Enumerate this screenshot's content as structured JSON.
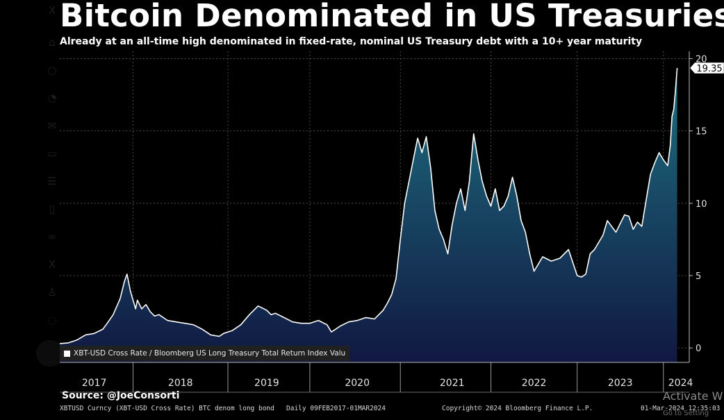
{
  "title": "Bitcoin Denominated in US Treasuries",
  "subtitle": "Already at an all-time high denominated in fixed-rate, nominal US Treasury debt with a 10+ year maturity",
  "legend": {
    "label": "XBT-USD Cross Rate / Bloomberg US Long Treasury Total Return Index Valu"
  },
  "source": "Source: @JoeConsorti",
  "footer": {
    "security": "XBTUSD Curncy (XBT-USD Cross Rate) BTC denom long bond",
    "range": "Daily 09FEB2017-01MAR2024",
    "copyright": "Copyright© 2024 Bloomberg Finance L.P.",
    "timestamp": "01-Mar-2024 12:35:03"
  },
  "watermark": {
    "line1": "Activate W",
    "line2": "Go to Setting"
  },
  "background_sidebar_icons": [
    "x-logo-icon",
    "home-icon",
    "search-icon",
    "bell-icon",
    "mail-icon",
    "compose-icon",
    "list-icon",
    "bookmark-icon",
    "communities-icon",
    "x-premium-icon",
    "profile-icon",
    "more-icon"
  ],
  "colors": {
    "background": "#000000",
    "line": "#ffffff",
    "area_top": "#1d6f80",
    "area_bottom": "#111842",
    "grid": "#5a5a5a",
    "last_value_box": "#ffffff"
  },
  "chart_data": {
    "type": "area",
    "title": "Bitcoin Denominated in US Treasuries",
    "xlabel": "",
    "ylabel": "",
    "ylim": [
      -1,
      20.5
    ],
    "xlim": [
      2017.0,
      2024.3
    ],
    "y_ticks": [
      0,
      5,
      10,
      15,
      20
    ],
    "y_tick_labels": [
      "0",
      "5",
      "10",
      "15",
      "20"
    ],
    "x_tick_labels": [
      "2017",
      "2018",
      "2019",
      "2020",
      "2021",
      "2022",
      "2023",
      "2024"
    ],
    "x_tick_positions": [
      2017.4,
      2018.4,
      2019.4,
      2020.45,
      2021.55,
      2022.5,
      2023.5,
      2024.2
    ],
    "x_year_boundaries": [
      2017.85,
      2018.95,
      2019.9,
      2020.95,
      2022.0,
      2023.0,
      2024.0
    ],
    "last_value": 19.35,
    "series": [
      {
        "name": "XBT-USD Cross Rate / Bloomberg US Long Treasury Total Return Index Valu",
        "x": [
          2017.0,
          2017.1,
          2017.2,
          2017.3,
          2017.4,
          2017.5,
          2017.55,
          2017.62,
          2017.7,
          2017.75,
          2017.78,
          2017.8,
          2017.82,
          2017.85,
          2017.88,
          2017.9,
          2017.95,
          2018.0,
          2018.05,
          2018.1,
          2018.15,
          2018.25,
          2018.35,
          2018.45,
          2018.55,
          2018.65,
          2018.75,
          2018.85,
          2018.9,
          2019.0,
          2019.1,
          2019.2,
          2019.3,
          2019.4,
          2019.45,
          2019.5,
          2019.6,
          2019.7,
          2019.8,
          2019.9,
          2020.0,
          2020.1,
          2020.15,
          2020.2,
          2020.25,
          2020.35,
          2020.45,
          2020.55,
          2020.65,
          2020.7,
          2020.75,
          2020.8,
          2020.85,
          2020.9,
          2020.95,
          2021.0,
          2021.05,
          2021.1,
          2021.15,
          2021.2,
          2021.25,
          2021.3,
          2021.35,
          2021.4,
          2021.45,
          2021.5,
          2021.55,
          2021.6,
          2021.65,
          2021.7,
          2021.75,
          2021.8,
          2021.85,
          2021.9,
          2021.95,
          2022.0,
          2022.05,
          2022.1,
          2022.15,
          2022.2,
          2022.25,
          2022.3,
          2022.35,
          2022.4,
          2022.45,
          2022.5,
          2022.55,
          2022.6,
          2022.7,
          2022.8,
          2022.9,
          2023.0,
          2023.05,
          2023.1,
          2023.15,
          2023.2,
          2023.25,
          2023.3,
          2023.35,
          2023.45,
          2023.5,
          2023.55,
          2023.6,
          2023.65,
          2023.7,
          2023.75,
          2023.8,
          2023.85,
          2023.9,
          2023.95,
          2024.0,
          2024.05,
          2024.08,
          2024.1,
          2024.12,
          2024.14,
          2024.16
        ],
        "values": [
          0.3,
          0.35,
          0.55,
          0.9,
          1.0,
          1.3,
          1.7,
          2.3,
          3.4,
          4.6,
          5.1,
          4.5,
          3.9,
          3.3,
          2.7,
          3.3,
          2.7,
          3.0,
          2.5,
          2.2,
          2.3,
          1.9,
          1.8,
          1.7,
          1.6,
          1.3,
          0.9,
          0.8,
          1.0,
          1.2,
          1.6,
          2.3,
          2.9,
          2.6,
          2.3,
          2.4,
          2.1,
          1.8,
          1.7,
          1.7,
          1.9,
          1.6,
          1.1,
          1.3,
          1.5,
          1.8,
          1.9,
          2.1,
          2.0,
          2.3,
          2.6,
          3.1,
          3.7,
          4.8,
          7.5,
          10.0,
          11.5,
          13.0,
          14.5,
          13.5,
          14.6,
          12.5,
          9.5,
          8.2,
          7.5,
          6.5,
          8.5,
          10.0,
          11.0,
          9.5,
          11.5,
          14.8,
          13.0,
          11.5,
          10.5,
          9.8,
          11.0,
          9.5,
          9.8,
          10.5,
          11.8,
          10.5,
          8.8,
          8.0,
          6.5,
          5.3,
          5.8,
          6.3,
          6.0,
          6.2,
          6.8,
          5.0,
          4.9,
          5.1,
          6.5,
          6.8,
          7.3,
          7.8,
          8.8,
          8.0,
          8.6,
          9.2,
          9.1,
          8.2,
          8.7,
          8.4,
          10.2,
          12.0,
          12.8,
          13.5,
          13.0,
          12.6,
          14.0,
          16.0,
          16.5,
          17.8,
          19.35
        ]
      }
    ]
  }
}
